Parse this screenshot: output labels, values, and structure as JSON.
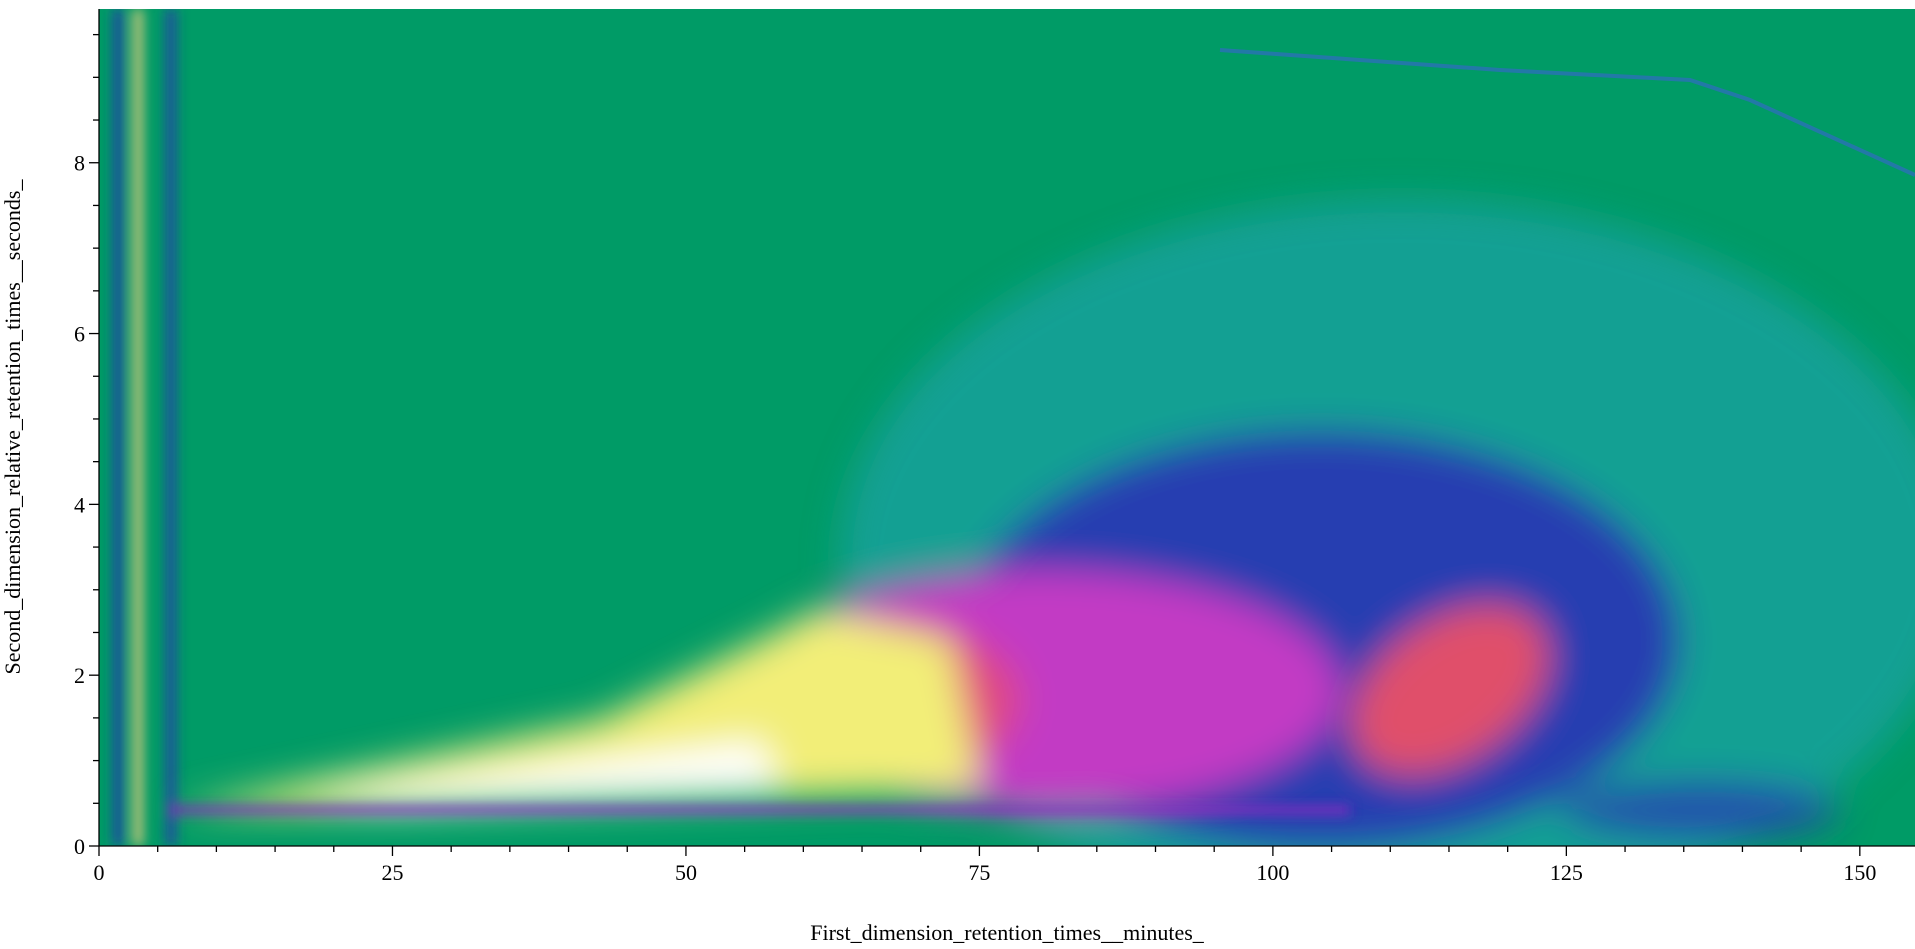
{
  "chart_data": {
    "type": "heatmap",
    "xlabel": "First_dimension_retention_times__minutes_",
    "ylabel": "Second_dimension_relative_retention_times__seconds_",
    "xlim": [
      0,
      154.7
    ],
    "ylim": [
      0,
      9.8
    ],
    "xticks": [
      0,
      25,
      50,
      75,
      100,
      125,
      150
    ],
    "yticks": [
      0,
      2,
      4,
      6,
      8
    ],
    "xminorticks": [
      5,
      10,
      15,
      20,
      30,
      35,
      40,
      45,
      55,
      60,
      65,
      70,
      80,
      85,
      90,
      95,
      105,
      110,
      115,
      120,
      130,
      135,
      140,
      145
    ],
    "yminorticks": [
      0.5,
      1,
      1.5,
      2.5,
      3,
      3.5,
      4.5,
      5,
      5.5,
      6.5,
      7,
      7.5,
      8.5,
      9,
      9.5
    ],
    "background": "#009b66"
  }
}
